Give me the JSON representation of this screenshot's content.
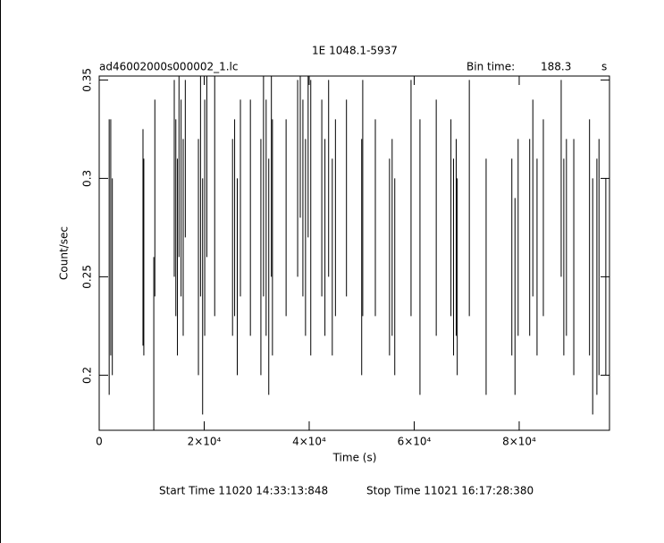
{
  "chart_data": {
    "type": "errorbar",
    "title": "1E 1048.1-5937",
    "file_label": "ad46002000s000002_1.lc",
    "bin_time_label": "Bin time:",
    "bin_time": "188.3",
    "bin_time_unit": "s",
    "xlabel": "Time (s)",
    "ylabel": "Count/sec",
    "start_time": "Start Time 11020 14:33:13:848",
    "stop_time": "Stop Time 11021 16:17:28:380",
    "color": "#000000",
    "xlim": [
      0,
      97200
    ],
    "ylim": [
      0.172,
      0.352
    ],
    "xticks": [
      0,
      {
        "value": 20000,
        "label": "2×10⁴"
      },
      {
        "value": 40000,
        "label": "4×10⁴"
      },
      {
        "value": 60000,
        "label": "6×10⁴"
      },
      {
        "value": 80000,
        "label": "8×10⁴"
      }
    ],
    "yticks": [
      0.2,
      0.25,
      0.3,
      0.35
    ],
    "x": [
      1900,
      2200,
      2500,
      8340,
      8500,
      10400,
      10600,
      14300,
      14600,
      14900,
      15200,
      15600,
      16000,
      16400,
      18900,
      19300,
      19700,
      20100,
      20500,
      22000,
      25400,
      25800,
      26300,
      26900,
      28800,
      30800,
      31300,
      31800,
      32300,
      32800,
      33000,
      35600,
      37800,
      38300,
      38800,
      39300,
      39800,
      40300,
      42400,
      43000,
      43700,
      44400,
      45000,
      47100,
      50000,
      50200,
      52600,
      55300,
      55800,
      56300,
      59400,
      61100,
      64200,
      67000,
      67500,
      68000,
      68200,
      70500,
      73700,
      78600,
      79200,
      79800,
      82000,
      82600,
      83400,
      84600,
      88000,
      88500,
      89000,
      90400,
      93400,
      94000,
      94800,
      95200,
      96500
    ],
    "values": [
      0.26,
      0.27,
      0.25,
      0.27,
      0.26,
      0.2,
      0.29,
      0.3,
      0.28,
      0.26,
      0.31,
      0.29,
      0.27,
      0.31,
      0.26,
      0.3,
      0.24,
      0.28,
      0.32,
      0.3,
      0.27,
      0.28,
      0.25,
      0.29,
      0.28,
      0.26,
      0.3,
      0.28,
      0.25,
      0.31,
      0.27,
      0.28,
      0.3,
      0.33,
      0.29,
      0.27,
      0.32,
      0.28,
      0.29,
      0.27,
      0.3,
      0.26,
      0.28,
      0.29,
      0.26,
      0.29,
      0.28,
      0.26,
      0.27,
      0.25,
      0.29,
      0.26,
      0.28,
      0.28,
      0.26,
      0.27,
      0.25,
      0.29,
      0.25,
      0.26,
      0.24,
      0.27,
      0.27,
      0.29,
      0.26,
      0.28,
      0.3,
      0.26,
      0.27,
      0.26,
      0.27,
      0.24,
      0.25,
      0.26,
      0.25
    ],
    "errors": [
      0.07,
      0.06,
      0.05,
      0.055,
      0.05,
      0.06,
      0.05,
      0.05,
      0.05,
      0.05,
      0.05,
      0.05,
      0.05,
      0.04,
      0.06,
      0.06,
      0.06,
      0.06,
      0.06,
      0.07,
      0.05,
      0.05,
      0.05,
      0.05,
      0.06,
      0.06,
      0.06,
      0.06,
      0.06,
      0.06,
      0.06,
      0.05,
      0.05,
      0.05,
      0.05,
      0.05,
      0.05,
      0.07,
      0.05,
      0.05,
      0.05,
      0.05,
      0.05,
      0.05,
      0.06,
      0.06,
      0.05,
      0.05,
      0.05,
      0.05,
      0.06,
      0.07,
      0.06,
      0.05,
      0.05,
      0.05,
      0.05,
      0.06,
      0.06,
      0.05,
      0.05,
      0.05,
      0.05,
      0.05,
      0.05,
      0.05,
      0.05,
      0.05,
      0.05,
      0.06,
      0.06,
      0.06,
      0.06,
      0.06,
      0.05
    ]
  }
}
